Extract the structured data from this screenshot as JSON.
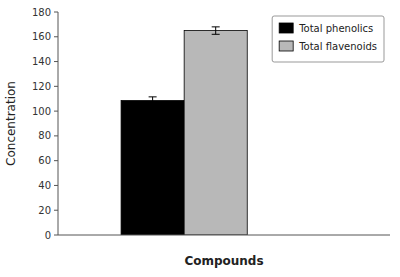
{
  "chart_data": {
    "type": "bar",
    "xlabel": "Compounds",
    "ylabel": "Concentration",
    "categories": [
      null
    ],
    "series": [
      {
        "name": "Total phenolics",
        "color": "#000000",
        "values": [
          108.5
        ],
        "errors": [
          3.0
        ]
      },
      {
        "name": "Total flavenoids",
        "color": "#b8b8b8",
        "values": [
          165.0
        ],
        "errors": [
          3.0
        ]
      }
    ],
    "ylim": [
      0,
      180
    ],
    "yticks": [
      0,
      20,
      40,
      60,
      80,
      100,
      120,
      140,
      160,
      180
    ],
    "grid": false,
    "legend": "upper right",
    "tick_labels": "y"
  }
}
